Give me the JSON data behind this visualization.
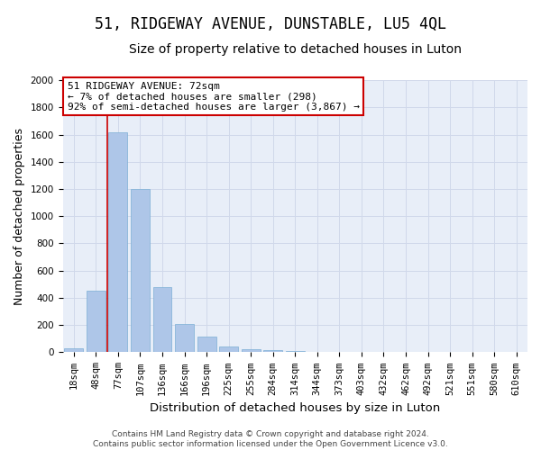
{
  "title": "51, RIDGEWAY AVENUE, DUNSTABLE, LU5 4QL",
  "subtitle": "Size of property relative to detached houses in Luton",
  "xlabel": "Distribution of detached houses by size in Luton",
  "ylabel": "Number of detached properties",
  "footer_line1": "Contains HM Land Registry data © Crown copyright and database right 2024.",
  "footer_line2": "Contains public sector information licensed under the Open Government Licence v3.0.",
  "categories": [
    "18sqm",
    "48sqm",
    "77sqm",
    "107sqm",
    "136sqm",
    "166sqm",
    "196sqm",
    "225sqm",
    "255sqm",
    "284sqm",
    "314sqm",
    "344sqm",
    "373sqm",
    "403sqm",
    "432sqm",
    "462sqm",
    "492sqm",
    "521sqm",
    "551sqm",
    "580sqm",
    "610sqm"
  ],
  "values": [
    30,
    450,
    1620,
    1200,
    480,
    210,
    115,
    40,
    25,
    15,
    8,
    3,
    1,
    0,
    0,
    0,
    0,
    0,
    0,
    0,
    0
  ],
  "bar_color": "#aec6e8",
  "bar_edge_color": "#7bafd4",
  "vline_color": "#cc0000",
  "annotation_line1": "51 RIDGEWAY AVENUE: 72sqm",
  "annotation_line2": "← 7% of detached houses are smaller (298)",
  "annotation_line3": "92% of semi-detached houses are larger (3,867) →",
  "annotation_box_facecolor": "#ffffff",
  "annotation_box_edgecolor": "#cc0000",
  "ylim": [
    0,
    2000
  ],
  "yticks": [
    0,
    200,
    400,
    600,
    800,
    1000,
    1200,
    1400,
    1600,
    1800,
    2000
  ],
  "grid_color": "#d0d8ea",
  "bg_color": "#e8eef8",
  "title_fontsize": 12,
  "subtitle_fontsize": 10,
  "xlabel_fontsize": 9.5,
  "ylabel_fontsize": 9,
  "tick_fontsize": 7.5,
  "annotation_fontsize": 8,
  "footer_fontsize": 6.5
}
